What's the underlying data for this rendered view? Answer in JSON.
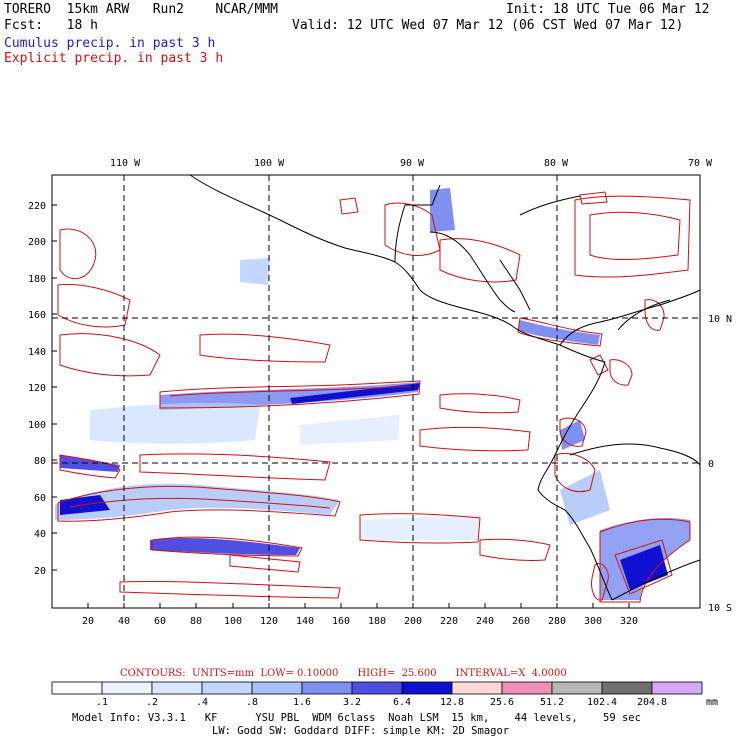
{
  "header": {
    "model": "TORERO  15km ARW   Run2    NCAR/MMM",
    "init": "Init: 18 UTC Tue 06 Mar 12",
    "fcst": "Fcst:   18 h",
    "valid": "Valid: 12 UTC Wed 07 Mar 12 (06 CST Wed 07 Mar 12)",
    "legend_cumulus": "Cumulus precip. in past 3 h",
    "legend_explicit": "Explicit precip. in past 3 h"
  },
  "colors": {
    "cumulus": "#2020c0",
    "explicit": "#d01010",
    "coast": "#000000"
  },
  "axes": {
    "top_lon_labels": [
      "110 W",
      "100 W",
      "90 W",
      "80 W",
      "70 W"
    ],
    "right_lat_labels": [
      "10 N",
      "0",
      "10 S"
    ],
    "left_y_ticks": [
      "20",
      "40",
      "60",
      "80",
      "100",
      "120",
      "140",
      "160",
      "180",
      "200",
      "220"
    ],
    "bottom_x_ticks": [
      "20",
      "40",
      "60",
      "80",
      "100",
      "120",
      "140",
      "160",
      "180",
      "200",
      "220",
      "240",
      "260",
      "280",
      "300",
      "320"
    ]
  },
  "contours_info": {
    "label": "CONTOURS:  UNITS=mm  LOW= 0.10000      HIGH=  25.600      INTERVAL=X  4.0000"
  },
  "colorbar": {
    "labels": [
      ".1",
      ".2",
      ".4",
      ".8",
      "1.6",
      "3.2",
      "6.4",
      "12.8",
      "25.6",
      "51.2",
      "102.4",
      "204.8"
    ],
    "colors": [
      "#ffffff",
      "#eef4ff",
      "#dae8ff",
      "#c2d8ff",
      "#a8c0f8",
      "#8090f0",
      "#5050e0",
      "#1010d0",
      "#ffd8d8",
      "#f090b8",
      "#b8b8b8",
      "#707070",
      "#d8a8f8"
    ],
    "unit": "mm"
  },
  "model_info": {
    "line1": "Model Info: V3.3.1   KF      YSU PBL  WDM 6class  Noah LSM  15 km,    44 levels,    59 sec",
    "line2": "LW: Godd SW: Goddard DIFF: simple KM: 2D Smagor"
  }
}
